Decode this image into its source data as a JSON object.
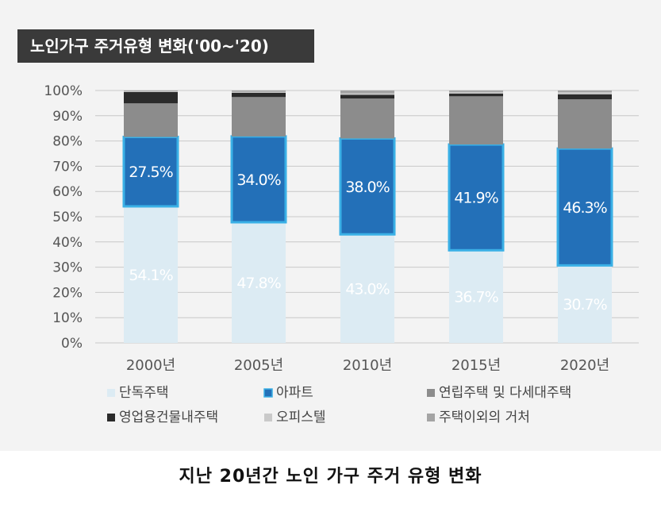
{
  "title": "노인가구 주거유형 변화('00~'20)",
  "caption": "지난 20년간 노인 가구 주거 유형 변화",
  "colors": {
    "단독주택": "#dcebf3",
    "아파트": "#2370b8",
    "아파트_border": "#3ab0e6",
    "연립주택 및 다세대주택": "#8c8c8c",
    "영업용건물내주택": "#2b2b2b",
    "오피스텔": "#c9c9c9",
    "주택이외의 거처": "#a4a4a4",
    "grid": "#c8c8c8",
    "axis_text": "#555555"
  },
  "chart_data": {
    "type": "bar",
    "stacked": true,
    "percent": true,
    "categories": [
      "2000년",
      "2005년",
      "2010년",
      "2015년",
      "2020년"
    ],
    "ylim": [
      0,
      100
    ],
    "yticks": [
      "0%",
      "10%",
      "20%",
      "30%",
      "40%",
      "50%",
      "60%",
      "70%",
      "80%",
      "90%",
      "100%"
    ],
    "grid": true,
    "legend_position": "bottom",
    "series": [
      {
        "name": "단독주택",
        "values": [
          54.1,
          47.8,
          43.0,
          36.7,
          30.7
        ],
        "labels": [
          "54.1%",
          "47.8%",
          "43.0%",
          "36.7%",
          "30.7%"
        ]
      },
      {
        "name": "아파트",
        "values": [
          27.5,
          34.0,
          38.0,
          41.9,
          46.3
        ],
        "labels": [
          "27.5%",
          "34.0%",
          "38.0%",
          "41.9%",
          "46.3%"
        ]
      },
      {
        "name": "연립주택 및 다세대주택",
        "values": [
          13.3,
          15.6,
          15.8,
          19.1,
          19.5
        ]
      },
      {
        "name": "영업용건물내주택",
        "values": [
          4.5,
          1.7,
          1.5,
          1.1,
          2.0
        ]
      },
      {
        "name": "오피스텔",
        "values": [
          0.3,
          0.4,
          0.6,
          0.6,
          0.8
        ]
      },
      {
        "name": "주택이외의 거처",
        "values": [
          0.3,
          0.5,
          1.1,
          0.6,
          0.7
        ]
      }
    ]
  }
}
